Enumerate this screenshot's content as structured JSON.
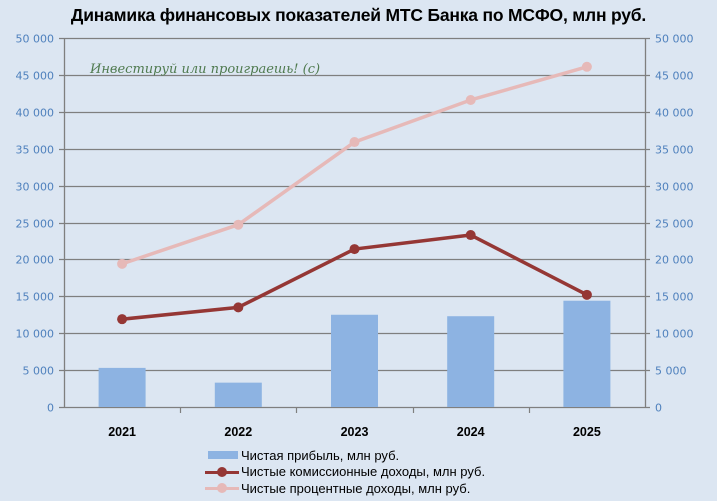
{
  "chart_data": {
    "type": "bar+line",
    "title": "Динамика финансовых показателей МТС Банка по МСФО, млн руб.",
    "watermark": "Инвестируй или проиграешь! (с)",
    "categories": [
      "2021",
      "2022",
      "2023",
      "2024",
      "2025"
    ],
    "series": [
      {
        "name": "Чистая прибыль, млн руб.",
        "type": "bar",
        "color": "#8db3e2",
        "values": [
          5300,
          3300,
          12500,
          12300,
          14400
        ]
      },
      {
        "name": "Чистые комиссионные доходы, млн руб.",
        "type": "line",
        "color": "#953735",
        "values": [
          11900,
          13500,
          21400,
          23300,
          15200
        ]
      },
      {
        "name": "Чистые процентные доходы, млн руб.",
        "type": "line",
        "color": "#e6b9b8",
        "values": [
          19400,
          24700,
          35900,
          41600,
          46100
        ]
      }
    ],
    "yticks": [
      "0",
      "5 000",
      "10 000",
      "15 000",
      "20 000",
      "25 000",
      "30 000",
      "35 000",
      "40 000",
      "45 000",
      "50 000"
    ],
    "ylim": [
      0,
      50000
    ],
    "grid": true,
    "legend_position": "bottom",
    "xlabel": "",
    "ylabel": ""
  },
  "legend": [
    {
      "label": "Чистая прибыль, млн руб."
    },
    {
      "label": "Чистые комиссионные доходы, млн руб."
    },
    {
      "label": "Чистые процентные доходы, млн руб."
    }
  ]
}
